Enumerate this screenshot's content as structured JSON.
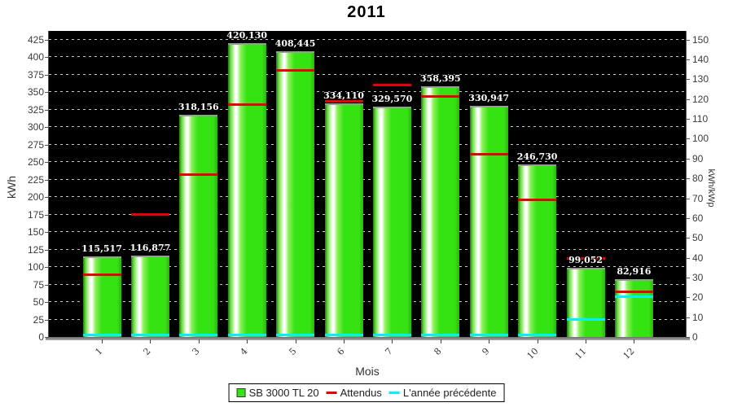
{
  "title": "2011",
  "axes": {
    "left_label": "kWh",
    "right_label": "kWh/kWp",
    "x_label": "Mois",
    "left_ticks": [
      0,
      25,
      50,
      75,
      100,
      125,
      150,
      175,
      200,
      225,
      250,
      275,
      300,
      325,
      350,
      375,
      400,
      425
    ],
    "right_ticks": [
      0,
      10,
      20,
      30,
      40,
      50,
      60,
      70,
      80,
      90,
      100,
      110,
      120,
      130,
      140,
      150
    ]
  },
  "legend": {
    "items": [
      {
        "label": "SB 3000 TL 20",
        "swatch": "square",
        "color": "#35e212"
      },
      {
        "label": "Attendus",
        "swatch": "line",
        "color": "#e60000"
      },
      {
        "label": "L'année précédente",
        "swatch": "line",
        "color": "#00f0ff"
      }
    ]
  },
  "colors": {
    "bar_green": "#35e212",
    "attendus_red": "#e60000",
    "previous_year_cyan": "#00f0ff",
    "plot_background": "#000000"
  },
  "chart_data": {
    "type": "bar",
    "title": "2011",
    "xlabel": "Mois",
    "ylabel": "kWh",
    "y2label": "kWh/kWp",
    "ylim": [
      0,
      437.5
    ],
    "y2lim": [
      0,
      154.4
    ],
    "grid": "horizontal-dashed",
    "legend_position": "bottom",
    "categories": [
      "1",
      "2",
      "3",
      "4",
      "5",
      "6",
      "7",
      "8",
      "9",
      "10",
      "11",
      "12"
    ],
    "series": [
      {
        "name": "SB 3000 TL 20",
        "type": "bar",
        "color": "#35e212",
        "values": [
          115.517,
          116.877,
          318.156,
          420.13,
          408.445,
          334.11,
          329.57,
          358.395,
          330.947,
          246.73,
          99.052,
          82.916
        ],
        "value_labels": [
          "115,517",
          "116,877",
          "318,156",
          "420,130",
          "408,445",
          "334,110",
          "329,570",
          "358,395",
          "330,947",
          "246,730",
          "99,052",
          "82,916"
        ]
      },
      {
        "name": "Attendus",
        "type": "line-segment",
        "color": "#e60000",
        "values": [
          89,
          174,
          231,
          332,
          381,
          336,
          360,
          343,
          261,
          196,
          112,
          64
        ]
      },
      {
        "name": "L'année précédente",
        "type": "line-segment",
        "color": "#00f0ff",
        "values": [
          2,
          2,
          2,
          2,
          2,
          2,
          2,
          2,
          2,
          2,
          24,
          57
        ]
      }
    ]
  }
}
